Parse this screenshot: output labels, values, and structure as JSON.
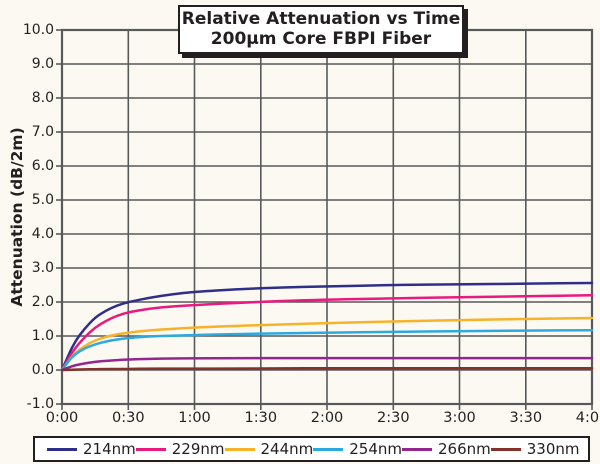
{
  "title": {
    "line1": "Relative Attenuation vs Time",
    "line2": "200μm Core FBPI Fiber"
  },
  "colors": {
    "background": "#FCF9F2",
    "grid": "#58595B",
    "text": "#231F20",
    "box_border": "#231F20",
    "box_background": "#FFFFFF"
  },
  "chart_data": {
    "type": "line",
    "title": "Relative Attenuation vs Time",
    "subtitle": "200μm Core FBPI Fiber",
    "xlabel": "",
    "ylabel": "Attenuation (dB/2m)",
    "ylim": [
      -1.0,
      10.0
    ],
    "y_tick_step": 1.0,
    "y_tick_labels": [
      "10.0",
      "9.0",
      "8.0",
      "7.0",
      "6.0",
      "5.0",
      "4.0",
      "3.0",
      "2.0",
      "1.0",
      "0.0",
      "-1.0"
    ],
    "x_tick_labels": [
      "0:00",
      "0:30",
      "1:00",
      "1:30",
      "2:00",
      "2:30",
      "3:00",
      "3:30",
      "4:00"
    ],
    "x_tick_minutes": [
      0,
      30,
      60,
      90,
      120,
      150,
      180,
      210,
      240
    ],
    "grid": true,
    "legend_position": "bottom",
    "x_minutes": [
      0,
      3,
      6,
      10,
      15,
      20,
      25,
      30,
      40,
      50,
      60,
      80,
      100,
      120,
      150,
      180,
      210,
      240
    ],
    "series": [
      {
        "name": "214nm",
        "color": "#2F2E8B",
        "values": [
          0,
          0.45,
          0.85,
          1.2,
          1.55,
          1.75,
          1.9,
          2.0,
          2.13,
          2.23,
          2.3,
          2.38,
          2.43,
          2.46,
          2.5,
          2.52,
          2.54,
          2.56
        ]
      },
      {
        "name": "229nm",
        "color": "#E8197F",
        "values": [
          0,
          0.35,
          0.65,
          0.95,
          1.25,
          1.45,
          1.6,
          1.7,
          1.81,
          1.87,
          1.91,
          1.98,
          2.03,
          2.07,
          2.11,
          2.14,
          2.17,
          2.2
        ]
      },
      {
        "name": "244nm",
        "color": "#F7B229",
        "values": [
          0,
          0.28,
          0.5,
          0.7,
          0.87,
          0.98,
          1.05,
          1.1,
          1.17,
          1.21,
          1.25,
          1.3,
          1.34,
          1.38,
          1.43,
          1.47,
          1.5,
          1.53
        ]
      },
      {
        "name": "254nm",
        "color": "#2BA9E0",
        "values": [
          0,
          0.27,
          0.47,
          0.63,
          0.76,
          0.84,
          0.9,
          0.94,
          0.99,
          1.01,
          1.03,
          1.06,
          1.08,
          1.1,
          1.12,
          1.14,
          1.16,
          1.17
        ]
      },
      {
        "name": "266nm",
        "color": "#93278F",
        "values": [
          0,
          0.08,
          0.14,
          0.19,
          0.24,
          0.27,
          0.29,
          0.31,
          0.33,
          0.34,
          0.34,
          0.35,
          0.35,
          0.35,
          0.35,
          0.35,
          0.35,
          0.35
        ]
      },
      {
        "name": "330nm",
        "color": "#82322A",
        "values": [
          0,
          0.01,
          0.01,
          0.02,
          0.02,
          0.03,
          0.03,
          0.03,
          0.04,
          0.04,
          0.04,
          0.04,
          0.05,
          0.05,
          0.05,
          0.05,
          0.05,
          0.05
        ]
      }
    ]
  }
}
